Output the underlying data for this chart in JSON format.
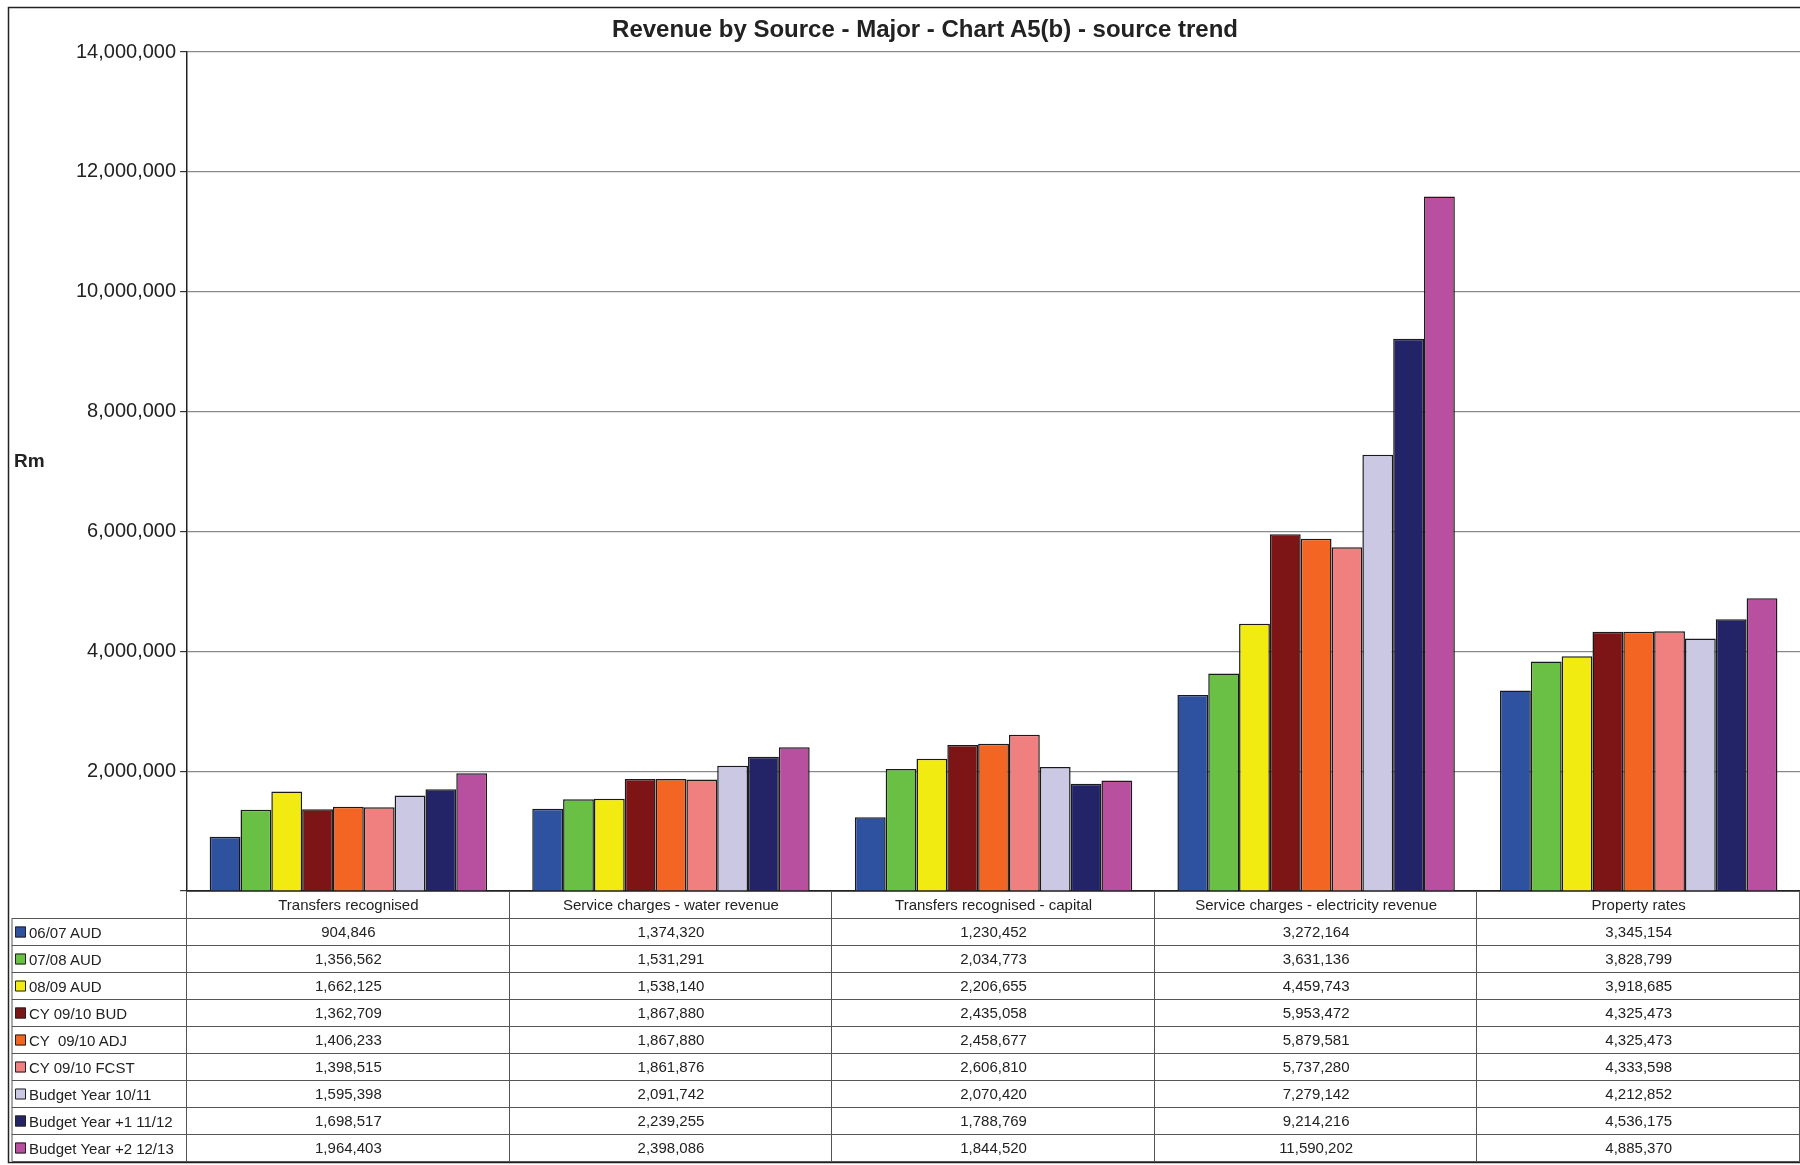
{
  "chart_data": {
    "type": "bar",
    "title": "Revenue by Source - Major - Chart A5(b) - source trend",
    "ylabel": "Rm",
    "categories": [
      "Transfers recognised",
      "Service charges - water revenue",
      "Transfers recognised - capital",
      "Service charges - electricity revenue",
      "Property rates"
    ],
    "series": [
      {
        "name": "06/07 AUD",
        "color": "#2f52a0",
        "values": [
          904846,
          1374320,
          1230452,
          3272164,
          3345154
        ],
        "value_labels": [
          "904,846",
          "1,374,320",
          "1,230,452",
          "3,272,164",
          "3,345,154"
        ]
      },
      {
        "name": "07/08 AUD",
        "color": "#6abf45",
        "values": [
          1356562,
          1531291,
          2034773,
          3631136,
          3828799
        ],
        "value_labels": [
          "1,356,562",
          "1,531,291",
          "2,034,773",
          "3,631,136",
          "3,828,799"
        ]
      },
      {
        "name": "08/09 AUD",
        "color": "#f2eb12",
        "values": [
          1662125,
          1538140,
          2206655,
          4459743,
          3918685
        ],
        "value_labels": [
          "1,662,125",
          "1,538,140",
          "2,206,655",
          "4,459,743",
          "3,918,685"
        ]
      },
      {
        "name": "CY 09/10 BUD",
        "color": "#7d1416",
        "values": [
          1362709,
          1867880,
          2435058,
          5953472,
          4325473
        ],
        "value_labels": [
          "1,362,709",
          "1,867,880",
          "2,435,058",
          "5,953,472",
          "4,325,473"
        ]
      },
      {
        "name": "CY  09/10 ADJ",
        "color": "#f26522",
        "values": [
          1406233,
          1867880,
          2458677,
          5879581,
          4325473
        ],
        "value_labels": [
          "1,406,233",
          "1,867,880",
          "2,458,677",
          "5,879,581",
          "4,325,473"
        ]
      },
      {
        "name": "CY 09/10 FCST",
        "color": "#f07f7f",
        "values": [
          1398515,
          1861876,
          2606810,
          5737280,
          4333598
        ],
        "value_labels": [
          "1,398,515",
          "1,861,876",
          "2,606,810",
          "5,737,280",
          "4,333,598"
        ]
      },
      {
        "name": "Budget Year 10/11",
        "color": "#cbc8e4",
        "values": [
          1595398,
          2091742,
          2070420,
          7279142,
          4212852
        ],
        "value_labels": [
          "1,595,398",
          "2,091,742",
          "2,070,420",
          "7,279,142",
          "4,212,852"
        ]
      },
      {
        "name": "Budget Year +1 11/12",
        "color": "#232467",
        "values": [
          1698517,
          2239255,
          1788769,
          9214216,
          4536175
        ],
        "value_labels": [
          "1,698,517",
          "2,239,255",
          "1,788,769",
          "9,214,216",
          "4,536,175"
        ]
      },
      {
        "name": "Budget Year +2 12/13",
        "color": "#b84f9f",
        "values": [
          1964403,
          2398086,
          1844520,
          11590202,
          4885370
        ],
        "value_labels": [
          "1,964,403",
          "2,398,086",
          "1,844,520",
          "11,590,202",
          "4,885,370"
        ]
      }
    ],
    "ylim": [
      0,
      14000000
    ],
    "yticks": [
      {
        "value": 0,
        "label": null
      },
      {
        "value": 2000000,
        "label": "2,000,000"
      },
      {
        "value": 4000000,
        "label": "4,000,000"
      },
      {
        "value": 6000000,
        "label": "6,000,000"
      },
      {
        "value": 8000000,
        "label": "8,000,000"
      },
      {
        "value": 10000000,
        "label": "10,000,000"
      },
      {
        "value": 12000000,
        "label": "12,000,000"
      },
      {
        "value": 14000000,
        "label": "14,000,000"
      }
    ],
    "grid": "y",
    "legend": "bottom left"
  }
}
